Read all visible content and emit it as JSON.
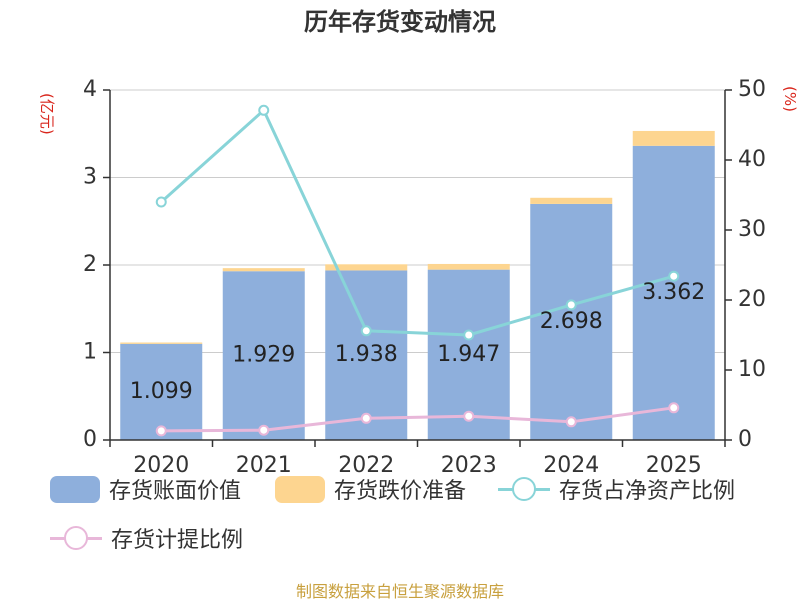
{
  "chart_data": {
    "type": "bar",
    "title": "历年存货变动情况",
    "stacked": true,
    "categories": [
      "2020",
      "2021",
      "2022",
      "2023",
      "2024",
      "2025"
    ],
    "y_left": {
      "label": "(亿元)",
      "range": [
        0,
        4
      ],
      "ticks": [
        0,
        1,
        2,
        3,
        4
      ]
    },
    "y_right": {
      "label": "(%)",
      "range": [
        0,
        50
      ],
      "ticks": [
        0,
        10,
        20,
        30,
        40,
        50
      ]
    },
    "series": [
      {
        "name": "存货账面价值",
        "type": "bar",
        "axis": "left",
        "color": "#8eafdc",
        "values": [
          1.099,
          1.929,
          1.938,
          1.947,
          2.698,
          3.362
        ],
        "show_labels": true
      },
      {
        "name": "存货跌价准备",
        "type": "bar",
        "axis": "left",
        "color": "#fdd590",
        "values": [
          0.015,
          0.035,
          0.07,
          0.065,
          0.07,
          0.17
        ]
      },
      {
        "name": "存货占净资产比例",
        "type": "line",
        "axis": "right",
        "color": "#88d4d8",
        "values": [
          34.0,
          47.1,
          15.6,
          15.0,
          19.3,
          23.4
        ]
      },
      {
        "name": "存货计提比例",
        "type": "line",
        "axis": "right",
        "color": "#e8b7d9",
        "values": [
          1.3,
          1.4,
          3.1,
          3.4,
          2.6,
          4.6
        ]
      }
    ],
    "grid": true,
    "legend_position": "bottom"
  },
  "source_note": "制图数据来自恒生聚源数据库"
}
